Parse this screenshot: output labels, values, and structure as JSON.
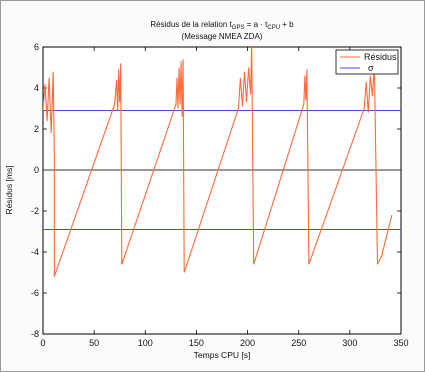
{
  "chart_data": {
    "type": "line",
    "title_parts": {
      "prefix": "Résidus de la relation t",
      "sub1": "GPS",
      "middle": " = a · t",
      "sub2": "CPU",
      "suffix": " + b"
    },
    "subtitle": "(Message NMEA ZDA)",
    "xlabel": "Temps CPU [s]",
    "ylabel": "Résidus [ms]",
    "xlim": [
      0,
      350
    ],
    "ylim": [
      -8,
      6
    ],
    "xticks": [
      "0",
      "50",
      "100",
      "150",
      "200",
      "250",
      "300",
      "350"
    ],
    "yticks": [
      "-8",
      "-6",
      "-4",
      "-2",
      "0",
      "2",
      "4",
      "6"
    ],
    "grid": false,
    "legend_position": "top-right",
    "series": [
      {
        "name": "Résidus",
        "color": "#ff6a3a",
        "segments": [
          [
            [
              0,
              2.9
            ],
            [
              2,
              4.2
            ],
            [
              4,
              2.4
            ],
            [
              6,
              4.5
            ],
            [
              8,
              1.8
            ],
            [
              10,
              4.8
            ],
            [
              11,
              0.8
            ]
          ],
          [
            [
              11,
              -5.2
            ],
            [
              70,
              3.2
            ],
            [
              72,
              4.4
            ],
            [
              73,
              2.9
            ],
            [
              74,
              4.9
            ],
            [
              75,
              3.3
            ],
            [
              76,
              5.2
            ],
            [
              77,
              -4.6
            ]
          ],
          [
            [
              77,
              -4.6
            ],
            [
              130,
              3.2
            ],
            [
              131,
              4.5
            ],
            [
              132,
              3.0
            ],
            [
              133,
              5.0
            ],
            [
              134,
              3.2
            ],
            [
              135,
              5.3
            ],
            [
              136,
              2.6
            ],
            [
              137,
              5.4
            ],
            [
              138,
              -5.0
            ]
          ],
          [
            [
              138,
              -5.0
            ],
            [
              191,
              3.0
            ],
            [
              193,
              4.5
            ],
            [
              195,
              3.1
            ],
            [
              197,
              4.8
            ],
            [
              199,
              3.3
            ],
            [
              201,
              5.0
            ],
            [
              203,
              3.7
            ],
            [
              204,
              6.1
            ],
            [
              206,
              -4.6
            ]
          ],
          [
            [
              206,
              -4.6
            ],
            [
              255,
              3.2
            ],
            [
              256,
              4.6
            ],
            [
              257,
              3.4
            ],
            [
              258,
              4.9
            ],
            [
              260,
              -4.6
            ]
          ],
          [
            [
              260,
              -4.6
            ],
            [
              314,
              3.0
            ],
            [
              316,
              4.3
            ],
            [
              318,
              2.8
            ],
            [
              320,
              4.6
            ],
            [
              322,
              3.6
            ],
            [
              324,
              5.0
            ],
            [
              327,
              -4.6
            ]
          ],
          [
            [
              327,
              -4.6
            ],
            [
              331,
              -4.2
            ],
            [
              341,
              -2.2
            ]
          ]
        ]
      },
      {
        "name": "σ",
        "color": "#4a4acc",
        "values": [
          2.9,
          -2.9
        ]
      }
    ],
    "zero_line": 0
  }
}
